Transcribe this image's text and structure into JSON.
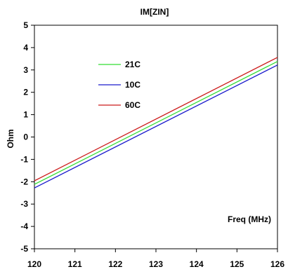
{
  "chart_data": {
    "type": "line",
    "title": "IM[ZIN]",
    "xlabel": "",
    "ylabel": "Ohm",
    "annotation": "Freq (MHz)",
    "xlim": [
      120,
      126
    ],
    "ylim": [
      -5,
      5
    ],
    "x_ticks": [
      120,
      121,
      122,
      123,
      124,
      125,
      126
    ],
    "y_ticks": [
      5,
      4,
      3,
      2,
      1,
      0,
      -1,
      -2,
      -3,
      -4,
      -5
    ],
    "grid": false,
    "legend_position": "upper-left",
    "series": [
      {
        "name": "21C",
        "color": "#33dd33",
        "x": [
          120,
          126
        ],
        "y": [
          -2.12,
          3.38
        ]
      },
      {
        "name": "10C",
        "color": "#1a1acc",
        "x": [
          120,
          126
        ],
        "y": [
          -2.28,
          3.22
        ]
      },
      {
        "name": "60C",
        "color": "#cc1a1a",
        "x": [
          120,
          126
        ],
        "y": [
          -1.96,
          3.56
        ]
      }
    ]
  }
}
